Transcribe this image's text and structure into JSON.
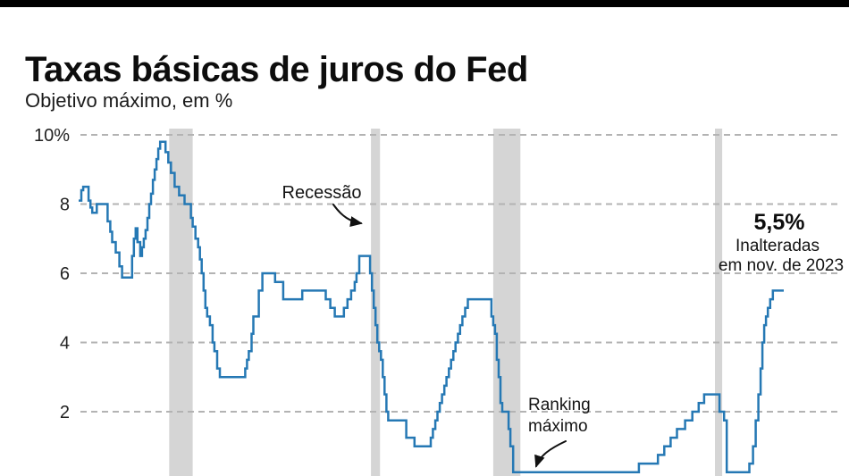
{
  "page": {
    "title": "Taxas básicas de juros do Fed",
    "subtitle": "Objetivo máximo, em %"
  },
  "chart_data": {
    "type": "line",
    "line_style": "step-after",
    "title": "Taxas básicas de juros do Fed",
    "subtitle": "Objetivo máximo, em %",
    "x_unit": "year",
    "x_range": [
      1985.05,
      2024.0
    ],
    "y_range": [
      0,
      10.3
    ],
    "grid": "dashed-horizontal",
    "legend": "none",
    "y_ticks": [
      {
        "value": 10,
        "label": "10%"
      },
      {
        "value": 8,
        "label": "8"
      },
      {
        "value": 6,
        "label": "6"
      },
      {
        "value": 4,
        "label": "4"
      },
      {
        "value": 2,
        "label": "2"
      }
    ],
    "series": [
      {
        "label": "Objetivo máximo (%)",
        "points": [
          [
            1985.05,
            8.1
          ],
          [
            1985.2,
            8.4
          ],
          [
            1985.3,
            8.5
          ],
          [
            1985.6,
            8.1
          ],
          [
            1985.7,
            7.9
          ],
          [
            1985.8,
            7.75
          ],
          [
            1986.05,
            8.0
          ],
          [
            1986.65,
            7.5
          ],
          [
            1986.8,
            7.2
          ],
          [
            1986.9,
            6.9
          ],
          [
            1987.1,
            6.6
          ],
          [
            1987.3,
            6.2
          ],
          [
            1987.45,
            5.875
          ],
          [
            1988.0,
            6.5
          ],
          [
            1988.1,
            7.0
          ],
          [
            1988.2,
            7.3
          ],
          [
            1988.3,
            6.9
          ],
          [
            1988.45,
            6.5
          ],
          [
            1988.55,
            6.75
          ],
          [
            1988.65,
            7.0
          ],
          [
            1988.75,
            7.25
          ],
          [
            1988.85,
            7.6
          ],
          [
            1988.95,
            8.0
          ],
          [
            1989.05,
            8.3
          ],
          [
            1989.15,
            8.7
          ],
          [
            1989.25,
            9.0
          ],
          [
            1989.35,
            9.3
          ],
          [
            1989.45,
            9.6
          ],
          [
            1989.55,
            9.8
          ],
          [
            1989.85,
            9.5
          ],
          [
            1990.0,
            9.2
          ],
          [
            1990.15,
            8.9
          ],
          [
            1990.35,
            8.5
          ],
          [
            1990.6,
            8.25
          ],
          [
            1990.9,
            8.0
          ],
          [
            1991.25,
            7.6
          ],
          [
            1991.35,
            7.35
          ],
          [
            1991.5,
            7.0
          ],
          [
            1991.65,
            6.75
          ],
          [
            1991.75,
            6.4
          ],
          [
            1991.85,
            6.0
          ],
          [
            1991.95,
            5.5
          ],
          [
            1992.05,
            5.0
          ],
          [
            1992.15,
            4.75
          ],
          [
            1992.3,
            4.5
          ],
          [
            1992.45,
            4.0
          ],
          [
            1992.55,
            3.75
          ],
          [
            1992.7,
            3.25
          ],
          [
            1992.85,
            3.0
          ],
          [
            1994.25,
            3.25
          ],
          [
            1994.35,
            3.5
          ],
          [
            1994.45,
            3.75
          ],
          [
            1994.6,
            4.25
          ],
          [
            1994.7,
            4.75
          ],
          [
            1995.0,
            5.5
          ],
          [
            1995.2,
            6.0
          ],
          [
            1995.9,
            5.75
          ],
          [
            1996.35,
            5.25
          ],
          [
            1997.4,
            5.5
          ],
          [
            1998.7,
            5.25
          ],
          [
            1998.95,
            5.0
          ],
          [
            1999.2,
            4.75
          ],
          [
            1999.7,
            5.0
          ],
          [
            1999.9,
            5.25
          ],
          [
            2000.1,
            5.5
          ],
          [
            2000.3,
            5.75
          ],
          [
            2000.4,
            6.0
          ],
          [
            2000.55,
            6.5
          ],
          [
            2001.15,
            6.0
          ],
          [
            2001.25,
            5.5
          ],
          [
            2001.35,
            5.0
          ],
          [
            2001.45,
            4.5
          ],
          [
            2001.55,
            4.0
          ],
          [
            2001.65,
            3.75
          ],
          [
            2001.75,
            3.5
          ],
          [
            2001.85,
            3.0
          ],
          [
            2001.95,
            2.5
          ],
          [
            2002.05,
            2.0
          ],
          [
            2002.15,
            1.75
          ],
          [
            2003.15,
            1.25
          ],
          [
            2003.6,
            1.0
          ],
          [
            2004.5,
            1.25
          ],
          [
            2004.62,
            1.5
          ],
          [
            2004.75,
            1.75
          ],
          [
            2004.87,
            2.0
          ],
          [
            2005.0,
            2.25
          ],
          [
            2005.12,
            2.5
          ],
          [
            2005.25,
            2.75
          ],
          [
            2005.37,
            3.0
          ],
          [
            2005.5,
            3.25
          ],
          [
            2005.62,
            3.5
          ],
          [
            2005.75,
            3.75
          ],
          [
            2005.87,
            4.0
          ],
          [
            2006.0,
            4.25
          ],
          [
            2006.12,
            4.5
          ],
          [
            2006.25,
            4.75
          ],
          [
            2006.4,
            5.0
          ],
          [
            2006.55,
            5.25
          ],
          [
            2007.85,
            4.75
          ],
          [
            2007.95,
            4.5
          ],
          [
            2008.05,
            4.25
          ],
          [
            2008.15,
            3.5
          ],
          [
            2008.25,
            3.0
          ],
          [
            2008.35,
            2.25
          ],
          [
            2008.45,
            2.0
          ],
          [
            2008.8,
            1.5
          ],
          [
            2008.9,
            1.0
          ],
          [
            2009.05,
            0.25
          ],
          [
            2016.0,
            0.5
          ],
          [
            2017.05,
            0.75
          ],
          [
            2017.4,
            1.0
          ],
          [
            2017.75,
            1.25
          ],
          [
            2018.1,
            1.5
          ],
          [
            2018.55,
            1.75
          ],
          [
            2018.95,
            2.0
          ],
          [
            2019.3,
            2.25
          ],
          [
            2019.6,
            2.5
          ],
          [
            2020.45,
            2.0
          ],
          [
            2020.7,
            1.75
          ],
          [
            2020.85,
            0.25
          ],
          [
            2022.1,
            0.5
          ],
          [
            2022.3,
            1.0
          ],
          [
            2022.45,
            1.75
          ],
          [
            2022.6,
            2.5
          ],
          [
            2022.72,
            3.25
          ],
          [
            2022.82,
            4.0
          ],
          [
            2022.92,
            4.5
          ],
          [
            2023.02,
            4.75
          ],
          [
            2023.12,
            5.0
          ],
          [
            2023.25,
            5.25
          ],
          [
            2023.4,
            5.5
          ],
          [
            2024.0,
            5.5
          ]
        ]
      }
    ],
    "recession_bands": {
      "ranges": [
        [
          1990.05,
          1991.35
        ],
        [
          2001.2,
          2001.7
        ],
        [
          2007.95,
          2009.45
        ],
        [
          2020.2,
          2020.6
        ]
      ]
    },
    "annotations": {
      "recession": {
        "text": "Recessão"
      },
      "range_max": {
        "line1": "Ranking",
        "line2": "máximo"
      },
      "latest": {
        "value": "5,5%",
        "line1": "Inalteradas",
        "line2": "em nov. de 2023"
      }
    },
    "colors": {
      "line": "#2578b4",
      "band": "#d5d5d5",
      "grid": "#b3b3b3",
      "text": "#141414",
      "topbar": "#000000"
    }
  }
}
